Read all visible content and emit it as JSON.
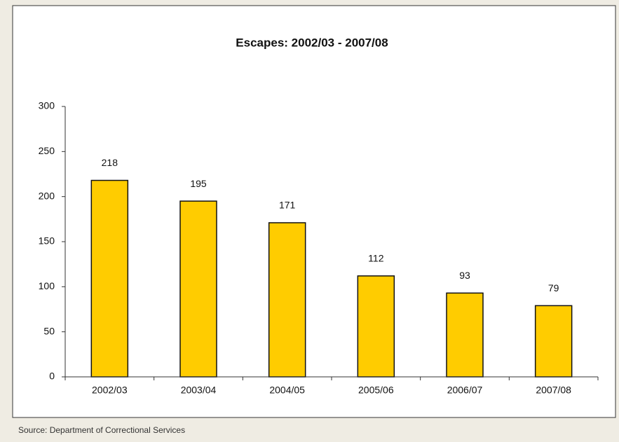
{
  "chart_data": {
    "type": "bar",
    "title": "Escapes: 2002/03 - 2007/08",
    "categories": [
      "2002/03",
      "2003/04",
      "2004/05",
      "2005/06",
      "2006/07",
      "2007/08"
    ],
    "values": [
      218,
      195,
      171,
      112,
      93,
      79
    ],
    "color": "#ffcc00",
    "ylim": [
      0,
      300
    ],
    "yticks": [
      0,
      50,
      100,
      150,
      200,
      250,
      300
    ],
    "grid": false,
    "source": "Source: Department of Correctional Services"
  }
}
